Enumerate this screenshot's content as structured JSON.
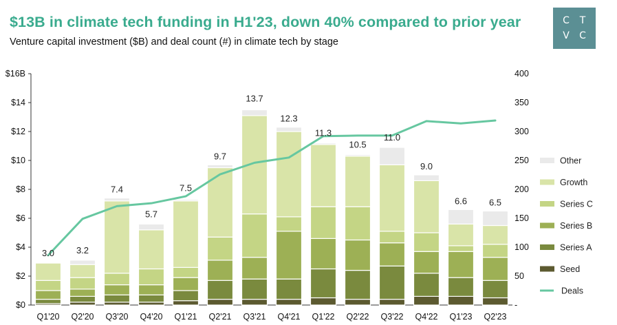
{
  "header": {
    "title": "$13B in climate tech funding in H1'23, down 40% compared to prior year",
    "subtitle": "Venture capital investment ($B) and deal count (#) in climate tech by stage"
  },
  "logo": {
    "letters": [
      "C",
      "T",
      "V",
      "C"
    ]
  },
  "chart_data": {
    "type": "bar",
    "stacked": true,
    "title": "$13B in climate tech funding in H1'23, down 40% compared to prior year",
    "subtitle": "Venture capital investment ($B) and deal count (#) in climate tech by stage",
    "categories": [
      "Q1'20",
      "Q2'20",
      "Q3'20",
      "Q4'20",
      "Q1'21",
      "Q2'21",
      "Q3'21",
      "Q4'21",
      "Q1'22",
      "Q2'22",
      "Q3'22",
      "Q4'22",
      "Q1'23",
      "Q2'23"
    ],
    "series": [
      {
        "name": "Seed",
        "color": "#5c5a30",
        "values": [
          0.1,
          0.2,
          0.2,
          0.2,
          0.3,
          0.4,
          0.4,
          0.4,
          0.5,
          0.4,
          0.4,
          0.6,
          0.6,
          0.5
        ]
      },
      {
        "name": "Series A",
        "color": "#7a8a3e",
        "values": [
          0.3,
          0.4,
          0.5,
          0.5,
          0.7,
          1.3,
          1.4,
          1.4,
          2.0,
          2.0,
          2.3,
          1.6,
          1.3,
          1.2
        ]
      },
      {
        "name": "Series B",
        "color": "#9db055",
        "values": [
          0.6,
          0.5,
          0.7,
          0.7,
          0.9,
          1.4,
          1.5,
          3.3,
          2.1,
          2.1,
          1.6,
          1.5,
          1.8,
          1.6
        ]
      },
      {
        "name": "Series C",
        "color": "#c4d585",
        "values": [
          0.7,
          0.8,
          0.8,
          1.1,
          0.7,
          1.6,
          3.0,
          1.0,
          2.2,
          2.3,
          0.8,
          1.3,
          0.4,
          0.9
        ]
      },
      {
        "name": "Growth",
        "color": "#d9e4a8",
        "values": [
          1.2,
          0.9,
          5.0,
          2.7,
          4.6,
          4.8,
          6.8,
          5.9,
          4.3,
          3.5,
          4.6,
          3.6,
          1.5,
          1.3
        ]
      },
      {
        "name": "Other",
        "color": "#eaeaea",
        "values": [
          0.0,
          0.3,
          0.2,
          0.4,
          0.1,
          0.2,
          0.4,
          0.3,
          0.1,
          0.1,
          1.2,
          0.4,
          1.0,
          1.0
        ]
      }
    ],
    "totals": [
      3.0,
      3.2,
      7.4,
      5.7,
      7.5,
      9.7,
      13.7,
      12.3,
      11.3,
      10.5,
      11.0,
      9.0,
      6.6,
      6.5
    ],
    "total_labels": [
      "3.0",
      "3.2",
      "7.4",
      "5.7",
      "7.5",
      "9.7",
      "13.7",
      "12.3",
      "11.3",
      "10.5",
      "11.0",
      "9.0",
      "6.6",
      "6.5"
    ],
    "line": {
      "name": "Deals",
      "color": "#66c7a0",
      "values": [
        86,
        149,
        171,
        176,
        188,
        226,
        246,
        255,
        292,
        293,
        293,
        318,
        314,
        319
      ]
    },
    "y_left": {
      "min": 0,
      "max": 16,
      "ticks": [
        0,
        2,
        4,
        6,
        8,
        10,
        12,
        14,
        16
      ],
      "tick_labels": [
        "$0",
        "$2",
        "$4",
        "$6",
        "$8",
        "$10",
        "$12",
        "$14",
        "$16B"
      ]
    },
    "y_right": {
      "min": 0,
      "max": 400,
      "ticks": [
        0,
        50,
        100,
        150,
        200,
        250,
        300,
        350,
        400
      ],
      "tick_labels": [
        "-",
        "50",
        "100",
        "150",
        "200",
        "250",
        "300",
        "350",
        "400"
      ]
    },
    "legend": [
      "Other",
      "Growth",
      "Series C",
      "Series B",
      "Series A",
      "Seed",
      "Deals"
    ],
    "legend_position": "right",
    "grid": false
  }
}
